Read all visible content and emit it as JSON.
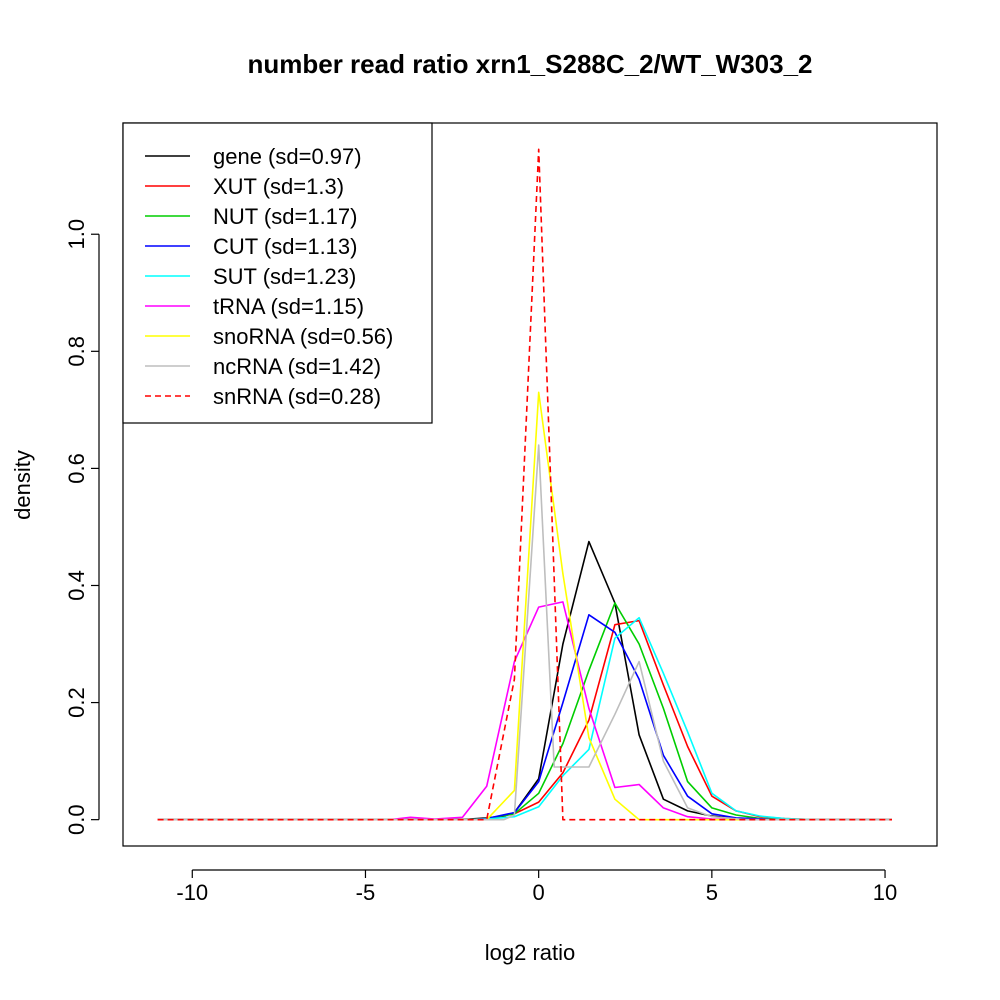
{
  "chart_data": {
    "type": "line",
    "title": "number read ratio xrn1_S288C_2/WT_W303_2",
    "xlabel": "log2 ratio",
    "ylabel": "density",
    "xlim": [
      -12,
      11.5
    ],
    "ylim": [
      -0.045,
      1.19
    ],
    "x_ticks": [
      -10,
      -5,
      0,
      5,
      10
    ],
    "y_ticks": [
      0.0,
      0.2,
      0.4,
      0.6,
      0.8,
      1.0
    ],
    "x_tick_labels": [
      "-10",
      "-5",
      "0",
      "5",
      "10"
    ],
    "y_tick_labels": [
      "0.0",
      "0.2",
      "0.4",
      "0.6",
      "0.8",
      "1.0"
    ],
    "grid": false,
    "legend_position": "top-left",
    "series": [
      {
        "name": "gene (sd=0.97)",
        "color": "#000000",
        "dash": "solid",
        "points": [
          [
            -11,
            0
          ],
          [
            -2.5,
            0
          ],
          [
            -2,
            0.001
          ],
          [
            -1.5,
            0.003
          ],
          [
            -1,
            0.006
          ],
          [
            -0.7,
            0.012
          ],
          [
            0,
            0.07
          ],
          [
            0.7,
            0.3
          ],
          [
            1.45,
            0.475
          ],
          [
            2.2,
            0.37
          ],
          [
            2.9,
            0.145
          ],
          [
            3.6,
            0.035
          ],
          [
            4.3,
            0.015
          ],
          [
            5,
            0.006
          ],
          [
            5.7,
            0.002
          ],
          [
            6.5,
            0
          ],
          [
            10.2,
            0
          ]
        ]
      },
      {
        "name": "XUT (sd=1.3)",
        "color": "#ff0000",
        "dash": "solid",
        "points": [
          [
            -11,
            0
          ],
          [
            -2,
            0
          ],
          [
            -1.5,
            0.002
          ],
          [
            -0.7,
            0.01
          ],
          [
            0,
            0.03
          ],
          [
            0.7,
            0.08
          ],
          [
            1.45,
            0.17
          ],
          [
            2.2,
            0.333
          ],
          [
            2.9,
            0.34
          ],
          [
            3.6,
            0.23
          ],
          [
            4.3,
            0.125
          ],
          [
            5,
            0.04
          ],
          [
            5.7,
            0.015
          ],
          [
            6.4,
            0.005
          ],
          [
            7.1,
            0.002
          ],
          [
            8,
            0
          ],
          [
            10.2,
            0
          ]
        ]
      },
      {
        "name": "NUT (sd=1.17)",
        "color": "#00cd00",
        "dash": "solid",
        "points": [
          [
            -11,
            0
          ],
          [
            -2,
            0
          ],
          [
            -1.5,
            0.002
          ],
          [
            -0.7,
            0.01
          ],
          [
            0,
            0.045
          ],
          [
            0.7,
            0.13
          ],
          [
            1.45,
            0.255
          ],
          [
            2.2,
            0.37
          ],
          [
            2.9,
            0.3
          ],
          [
            3.6,
            0.19
          ],
          [
            4.3,
            0.065
          ],
          [
            5,
            0.02
          ],
          [
            5.7,
            0.008
          ],
          [
            6.4,
            0.002
          ],
          [
            7.5,
            0
          ],
          [
            10.2,
            0
          ]
        ]
      },
      {
        "name": "CUT (sd=1.13)",
        "color": "#0000ff",
        "dash": "solid",
        "points": [
          [
            -11,
            0
          ],
          [
            -2,
            0
          ],
          [
            -1.5,
            0.002
          ],
          [
            -0.7,
            0.012
          ],
          [
            0,
            0.065
          ],
          [
            0.7,
            0.2
          ],
          [
            1.45,
            0.35
          ],
          [
            2.2,
            0.32
          ],
          [
            2.9,
            0.24
          ],
          [
            3.6,
            0.11
          ],
          [
            4.3,
            0.04
          ],
          [
            5,
            0.01
          ],
          [
            5.7,
            0.003
          ],
          [
            7,
            0
          ],
          [
            10.2,
            0
          ]
        ]
      },
      {
        "name": "SUT (sd=1.23)",
        "color": "#00ffff",
        "dash": "solid",
        "points": [
          [
            -11,
            0
          ],
          [
            -2,
            0
          ],
          [
            -1.5,
            0.001
          ],
          [
            -0.7,
            0.005
          ],
          [
            0,
            0.022
          ],
          [
            0.7,
            0.075
          ],
          [
            1.45,
            0.12
          ],
          [
            2.2,
            0.31
          ],
          [
            2.9,
            0.345
          ],
          [
            3.6,
            0.25
          ],
          [
            4.3,
            0.15
          ],
          [
            5,
            0.045
          ],
          [
            5.7,
            0.015
          ],
          [
            6.4,
            0.006
          ],
          [
            7.1,
            0.002
          ],
          [
            8,
            0
          ],
          [
            10.2,
            0
          ]
        ]
      },
      {
        "name": "tRNA (sd=1.15)",
        "color": "#ff00ff",
        "dash": "solid",
        "points": [
          [
            -11,
            0
          ],
          [
            -4.3,
            0
          ],
          [
            -3.7,
            0.004
          ],
          [
            -3,
            0.001
          ],
          [
            -2.2,
            0.004
          ],
          [
            -1.5,
            0.057
          ],
          [
            -0.7,
            0.27
          ],
          [
            0,
            0.363
          ],
          [
            0.7,
            0.372
          ],
          [
            1.45,
            0.19
          ],
          [
            2.2,
            0.055
          ],
          [
            2.9,
            0.06
          ],
          [
            3.6,
            0.02
          ],
          [
            4.3,
            0.005
          ],
          [
            5,
            0.001
          ],
          [
            6,
            0
          ],
          [
            10.2,
            0
          ]
        ]
      },
      {
        "name": "snoRNA (sd=0.56)",
        "color": "#ffff00",
        "dash": "solid",
        "points": [
          [
            -11,
            0
          ],
          [
            -1.5,
            0
          ],
          [
            -0.7,
            0.05
          ],
          [
            0,
            0.73
          ],
          [
            0.7,
            0.42
          ],
          [
            1.45,
            0.14
          ],
          [
            2.2,
            0.035
          ],
          [
            2.9,
            0
          ],
          [
            10.2,
            0
          ]
        ]
      },
      {
        "name": "ncRNA (sd=1.42)",
        "color": "#bebebe",
        "dash": "solid",
        "points": [
          [
            -11,
            0
          ],
          [
            -1,
            0
          ],
          [
            -0.7,
            0.008
          ],
          [
            0,
            0.64
          ],
          [
            0.45,
            0.09
          ],
          [
            1.45,
            0.09
          ],
          [
            2.2,
            0.18
          ],
          [
            2.9,
            0.27
          ],
          [
            3.6,
            0.1
          ],
          [
            4.3,
            0.02
          ],
          [
            5,
            0.005
          ],
          [
            6,
            0
          ],
          [
            10.2,
            0
          ]
        ]
      },
      {
        "name": "snRNA (sd=0.28)",
        "color": "#ff0000",
        "dash": "dashed",
        "points": [
          [
            -11,
            0
          ],
          [
            -1.5,
            0
          ],
          [
            -0.7,
            0.24
          ],
          [
            0,
            1.145
          ],
          [
            0.7,
            0
          ],
          [
            10.2,
            0
          ]
        ]
      }
    ]
  }
}
